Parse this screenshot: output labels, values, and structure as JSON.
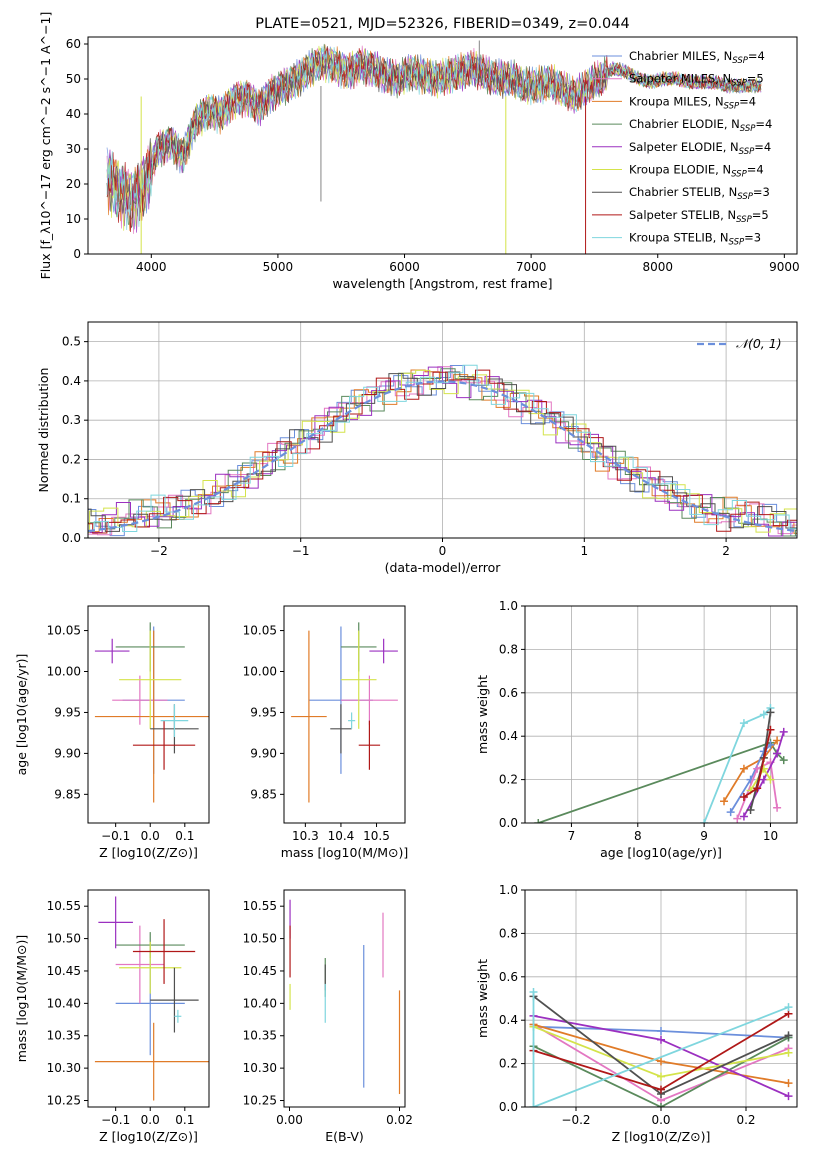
{
  "colors": {
    "Chabrier MILES": "#6b8fdc",
    "Salpeter MILES": "#e377c2",
    "Kroupa MILES": "#e07b28",
    "Chabrier ELODIE": "#5a8a5c",
    "Salpeter ELODIE": "#9b30c0",
    "Kroupa ELODIE": "#d4e34a",
    "Chabrier STELIB": "#505050",
    "Salpeter STELIB": "#b01818",
    "Kroupa STELIB": "#7fd6de"
  },
  "chart_data": [
    {
      "id": "spectrum",
      "type": "line",
      "title": "PLATE=0521, MJD=52326, FIBERID=0349, z=0.044",
      "xlabel": "wavelength [Angstrom, rest frame]",
      "ylabel": "Flux [f_λ10^−17 erg cm^−2 s^−1 A^−1]",
      "xlim": [
        3500,
        9100
      ],
      "ylim": [
        0,
        62
      ],
      "xticks": [
        4000,
        5000,
        6000,
        7000,
        8000,
        9000
      ],
      "yticks": [
        0,
        10,
        20,
        30,
        40,
        50,
        60
      ],
      "x": [
        3650,
        3750,
        3850,
        3950,
        4050,
        4150,
        4250,
        4350,
        4450,
        4550,
        4650,
        4750,
        4850,
        4950,
        5050,
        5150,
        5250,
        5350,
        5450,
        5550,
        5650,
        5750,
        5850,
        5950,
        6050,
        6150,
        6250,
        6350,
        6450,
        6550,
        6650,
        6750,
        6850,
        6950,
        7050,
        7150,
        7250,
        7350,
        7450,
        7550,
        7650,
        7750,
        7850,
        7950,
        8050,
        8150,
        8250,
        8350,
        8450,
        8550,
        8650,
        8750
      ],
      "y": [
        22,
        18,
        15,
        20,
        30,
        32,
        28,
        38,
        41,
        40,
        44,
        45,
        42,
        46,
        48,
        50,
        53,
        55,
        54,
        52,
        54,
        53,
        51,
        50,
        52,
        51,
        50,
        51,
        52,
        53,
        51,
        50,
        50,
        48,
        48,
        49,
        47,
        45,
        48,
        50,
        53,
        52,
        50,
        49,
        50,
        50,
        49,
        49,
        49,
        48,
        48,
        48
      ],
      "legend": [
        {
          "name": "Chabrier MILES",
          "nssp": "4"
        },
        {
          "name": "Salpeter MILES",
          "nssp": "5"
        },
        {
          "name": "Kroupa MILES",
          "nssp": "4"
        },
        {
          "name": "Chabrier ELODIE",
          "nssp": "4"
        },
        {
          "name": "Salpeter ELODIE",
          "nssp": "4"
        },
        {
          "name": "Kroupa ELODIE",
          "nssp": "4"
        },
        {
          "name": "Chabrier STELIB",
          "nssp": "3"
        },
        {
          "name": "Salpeter STELIB",
          "nssp": "5"
        },
        {
          "name": "Kroupa STELIB",
          "nssp": "3"
        }
      ],
      "legend_position": "top-right"
    },
    {
      "id": "residuals",
      "type": "line",
      "xlabel": "(data-model)/error",
      "ylabel": "Normed distribution",
      "xlim": [
        -2.5,
        2.5
      ],
      "ylim": [
        0,
        0.55
      ],
      "xticks": [
        -2,
        -1,
        0,
        1,
        2
      ],
      "yticks": [
        0.0,
        0.1,
        0.2,
        0.3,
        0.4,
        0.5
      ],
      "legend": [
        "𝒩(0, 1)"
      ],
      "legend_position": "top-right",
      "grid": true
    },
    {
      "id": "age-vs-Z",
      "type": "scatter",
      "xlabel": "Z [log10(Z/Z⊙)]",
      "ylabel": "age  [log10(age/yr)]",
      "xlim": [
        -0.18,
        0.17
      ],
      "ylim": [
        9.815,
        10.08
      ],
      "xticks": [
        -0.1,
        0.0,
        0.1
      ],
      "yticks": [
        9.85,
        9.9,
        9.95,
        10.0,
        10.05
      ],
      "points": [
        {
          "series": "Chabrier MILES",
          "x": 0.01,
          "y": 9.965,
          "xerr": 0.09,
          "yerr": 0.09
        },
        {
          "series": "Salpeter MILES",
          "x": -0.03,
          "y": 9.965,
          "xerr": 0.08,
          "yerr": 0.03
        },
        {
          "series": "Kroupa MILES",
          "x": 0.01,
          "y": 9.945,
          "xerr": 0.17,
          "yerr": 0.105
        },
        {
          "series": "Chabrier ELODIE",
          "x": 0.0,
          "y": 10.03,
          "xerr": 0.1,
          "yerr": 0.03
        },
        {
          "series": "Salpeter ELODIE",
          "x": -0.11,
          "y": 10.025,
          "xerr": 0.05,
          "yerr": 0.015
        },
        {
          "series": "Kroupa ELODIE",
          "x": 0.0,
          "y": 9.99,
          "xerr": 0.09,
          "yerr": 0.06
        },
        {
          "series": "Chabrier STELIB",
          "x": 0.07,
          "y": 9.93,
          "xerr": 0.07,
          "yerr": 0.03
        },
        {
          "series": "Salpeter STELIB",
          "x": 0.04,
          "y": 9.91,
          "xerr": 0.09,
          "yerr": 0.03
        },
        {
          "series": "Kroupa STELIB",
          "x": 0.07,
          "y": 9.94,
          "xerr": 0.04,
          "yerr": 0.02
        }
      ]
    },
    {
      "id": "age-vs-mass",
      "type": "scatter",
      "xlabel": "mass [log10(M/M⊙)]",
      "ylabel": "",
      "xlim": [
        10.24,
        10.58
      ],
      "ylim": [
        9.815,
        10.08
      ],
      "xticks": [
        10.3,
        10.4,
        10.5
      ],
      "yticks": [
        9.85,
        9.9,
        9.95,
        10.0,
        10.05
      ],
      "points": [
        {
          "series": "Chabrier MILES",
          "x": 10.4,
          "y": 9.965,
          "xerr": 0.09,
          "yerr": 0.09
        },
        {
          "series": "Salpeter MILES",
          "x": 10.48,
          "y": 9.965,
          "xerr": 0.08,
          "yerr": 0.03
        },
        {
          "series": "Kroupa MILES",
          "x": 10.31,
          "y": 9.945,
          "xerr": 0.05,
          "yerr": 0.105
        },
        {
          "series": "Chabrier ELODIE",
          "x": 10.45,
          "y": 10.03,
          "xerr": 0.05,
          "yerr": 0.03
        },
        {
          "series": "Salpeter ELODIE",
          "x": 10.52,
          "y": 10.025,
          "xerr": 0.04,
          "yerr": 0.015
        },
        {
          "series": "Kroupa ELODIE",
          "x": 10.45,
          "y": 9.99,
          "xerr": 0.05,
          "yerr": 0.06
        },
        {
          "series": "Chabrier STELIB",
          "x": 10.4,
          "y": 9.93,
          "xerr": 0.03,
          "yerr": 0.03
        },
        {
          "series": "Salpeter STELIB",
          "x": 10.48,
          "y": 9.91,
          "xerr": 0.03,
          "yerr": 0.03
        },
        {
          "series": "Kroupa STELIB",
          "x": 10.43,
          "y": 9.94,
          "xerr": 0.01,
          "yerr": 0.01
        }
      ]
    },
    {
      "id": "massweight-vs-age",
      "type": "line",
      "xlabel": "age  [log10(age/yr)]",
      "ylabel": "mass weight",
      "xlim": [
        6.3,
        10.4
      ],
      "ylim": [
        0,
        1.0
      ],
      "xticks": [
        7,
        8,
        9,
        10
      ],
      "yticks": [
        0.0,
        0.2,
        0.4,
        0.6,
        0.8,
        1.0
      ],
      "grid": true,
      "series": [
        {
          "series": "Chabrier ELODIE",
          "x": [
            6.5,
            10.0,
            10.1,
            10.2
          ],
          "y": [
            0.0,
            0.37,
            0.32,
            0.29
          ]
        },
        {
          "series": "Kroupa STELIB",
          "x": [
            9.0,
            9.6,
            9.9,
            10.0
          ],
          "y": [
            0.0,
            0.46,
            0.5,
            0.53
          ]
        },
        {
          "series": "Kroupa MILES",
          "x": [
            9.3,
            9.6,
            9.9,
            10.1
          ],
          "y": [
            0.1,
            0.25,
            0.3,
            0.38
          ]
        },
        {
          "series": "Chabrier MILES",
          "x": [
            9.4,
            9.7,
            9.9,
            10.0
          ],
          "y": [
            0.05,
            0.2,
            0.33,
            0.36
          ]
        },
        {
          "series": "Salpeter MILES",
          "x": [
            9.5,
            9.8,
            10.0,
            10.1
          ],
          "y": [
            0.02,
            0.25,
            0.28,
            0.07
          ]
        },
        {
          "series": "Salpeter ELODIE",
          "x": [
            9.6,
            9.9,
            10.1,
            10.2
          ],
          "y": [
            0.03,
            0.2,
            0.32,
            0.42
          ]
        },
        {
          "series": "Kroupa ELODIE",
          "x": [
            9.7,
            9.9,
            10.0
          ],
          "y": [
            0.15,
            0.25,
            0.2
          ]
        },
        {
          "series": "Chabrier STELIB",
          "x": [
            9.7,
            9.9,
            10.0
          ],
          "y": [
            0.06,
            0.3,
            0.51
          ]
        },
        {
          "series": "Salpeter STELIB",
          "x": [
            9.6,
            9.8,
            10.0
          ],
          "y": [
            0.12,
            0.16,
            0.43
          ]
        }
      ]
    },
    {
      "id": "mass-vs-Z",
      "type": "scatter",
      "xlabel": "Z [log10(Z/Z⊙)]",
      "ylabel": "mass [log10(M/M⊙)]",
      "xlim": [
        -0.18,
        0.17
      ],
      "ylim": [
        10.24,
        10.575
      ],
      "xticks": [
        -0.1,
        0.0,
        0.1
      ],
      "yticks": [
        10.25,
        10.3,
        10.35,
        10.4,
        10.45,
        10.5,
        10.55
      ],
      "points": [
        {
          "series": "Chabrier MILES",
          "x": 0.0,
          "y": 10.4,
          "xerr": 0.1,
          "yerr": 0.08
        },
        {
          "series": "Salpeter MILES",
          "x": -0.03,
          "y": 10.46,
          "xerr": 0.07,
          "yerr": 0.06
        },
        {
          "series": "Kroupa MILES",
          "x": 0.01,
          "y": 10.31,
          "xerr": 0.17,
          "yerr": 0.06
        },
        {
          "series": "Chabrier ELODIE",
          "x": 0.0,
          "y": 10.49,
          "xerr": 0.1,
          "yerr": 0.02
        },
        {
          "series": "Salpeter ELODIE",
          "x": -0.1,
          "y": 10.525,
          "xerr": 0.05,
          "yerr": 0.04
        },
        {
          "series": "Kroupa ELODIE",
          "x": 0.0,
          "y": 10.455,
          "xerr": 0.09,
          "yerr": 0.04
        },
        {
          "series": "Chabrier STELIB",
          "x": 0.07,
          "y": 10.405,
          "xerr": 0.07,
          "yerr": 0.05
        },
        {
          "series": "Salpeter STELIB",
          "x": 0.04,
          "y": 10.48,
          "xerr": 0.09,
          "yerr": 0.05
        },
        {
          "series": "Kroupa STELIB",
          "x": 0.08,
          "y": 10.38,
          "xerr": 0.01,
          "yerr": 0.01
        }
      ]
    },
    {
      "id": "mass-vs-ebv",
      "type": "scatter",
      "xlabel": "E(B-V)",
      "ylabel": "",
      "xlim": [
        -0.001,
        0.021
      ],
      "ylim": [
        10.24,
        10.575
      ],
      "xticks": [
        0.0,
        0.02
      ],
      "yticks": [
        10.25,
        10.3,
        10.35,
        10.4,
        10.45,
        10.5,
        10.55
      ],
      "points": [
        {
          "series": "Chabrier MILES",
          "x": 0.0135,
          "y": 10.38,
          "xerr": 0,
          "yerr": 0.11
        },
        {
          "series": "Salpeter MILES",
          "x": 0.017,
          "y": 10.49,
          "xerr": 0,
          "yerr": 0.05
        },
        {
          "series": "Kroupa MILES",
          "x": 0.02,
          "y": 10.34,
          "xerr": 0,
          "yerr": 0.08
        },
        {
          "series": "Chabrier ELODIE",
          "x": 0.0065,
          "y": 10.44,
          "xerr": 0,
          "yerr": 0.03
        },
        {
          "series": "Salpeter ELODIE",
          "x": 0.0001,
          "y": 10.53,
          "xerr": 0,
          "yerr": 0.03
        },
        {
          "series": "Kroupa ELODIE",
          "x": 0.0001,
          "y": 10.41,
          "xerr": 0,
          "yerr": 0.02
        },
        {
          "series": "Chabrier STELIB",
          "x": 0.0065,
          "y": 10.44,
          "xerr": 0,
          "yerr": 0.02
        },
        {
          "series": "Salpeter STELIB",
          "x": 0.0001,
          "y": 10.48,
          "xerr": 0,
          "yerr": 0.04
        },
        {
          "series": "Kroupa STELIB",
          "x": 0.0065,
          "y": 10.4,
          "xerr": 0,
          "yerr": 0.03
        }
      ]
    },
    {
      "id": "massweight-vs-Z",
      "type": "line",
      "xlabel": "Z [log10(Z/Z⊙)]",
      "ylabel": "mass weight",
      "xlim": [
        -0.32,
        0.32
      ],
      "ylim": [
        0,
        1.0
      ],
      "xticks": [
        -0.2,
        0.0,
        0.2
      ],
      "yticks": [
        0.0,
        0.2,
        0.4,
        0.6,
        0.8,
        1.0
      ],
      "grid": true,
      "series": [
        {
          "series": "Chabrier MILES",
          "x": [
            -0.3,
            0.0,
            0.3
          ],
          "y": [
            0.37,
            0.35,
            0.32
          ]
        },
        {
          "series": "Salpeter MILES",
          "x": [
            -0.3,
            0.0,
            0.3
          ],
          "y": [
            0.38,
            0.03,
            0.27
          ]
        },
        {
          "series": "Kroupa MILES",
          "x": [
            -0.3,
            0.0,
            0.3
          ],
          "y": [
            0.38,
            0.21,
            0.11
          ]
        },
        {
          "series": "Chabrier ELODIE",
          "x": [
            -0.3,
            0.0,
            0.3
          ],
          "y": [
            0.28,
            0.0,
            0.32
          ]
        },
        {
          "series": "Salpeter ELODIE",
          "x": [
            -0.3,
            0.0,
            0.3
          ],
          "y": [
            0.42,
            0.31,
            0.05
          ]
        },
        {
          "series": "Kroupa ELODIE",
          "x": [
            -0.3,
            0.0,
            0.3
          ],
          "y": [
            0.37,
            0.14,
            0.25
          ]
        },
        {
          "series": "Chabrier STELIB",
          "x": [
            -0.3,
            0.0,
            0.3
          ],
          "y": [
            0.51,
            0.06,
            0.33
          ]
        },
        {
          "series": "Salpeter STELIB",
          "x": [
            -0.3,
            0.0,
            0.3
          ],
          "y": [
            0.26,
            0.08,
            0.43
          ]
        },
        {
          "series": "Kroupa STELIB",
          "x": [
            -0.3,
            -0.3,
            0.3
          ],
          "y": [
            0.53,
            0.0,
            0.46
          ]
        }
      ]
    }
  ]
}
